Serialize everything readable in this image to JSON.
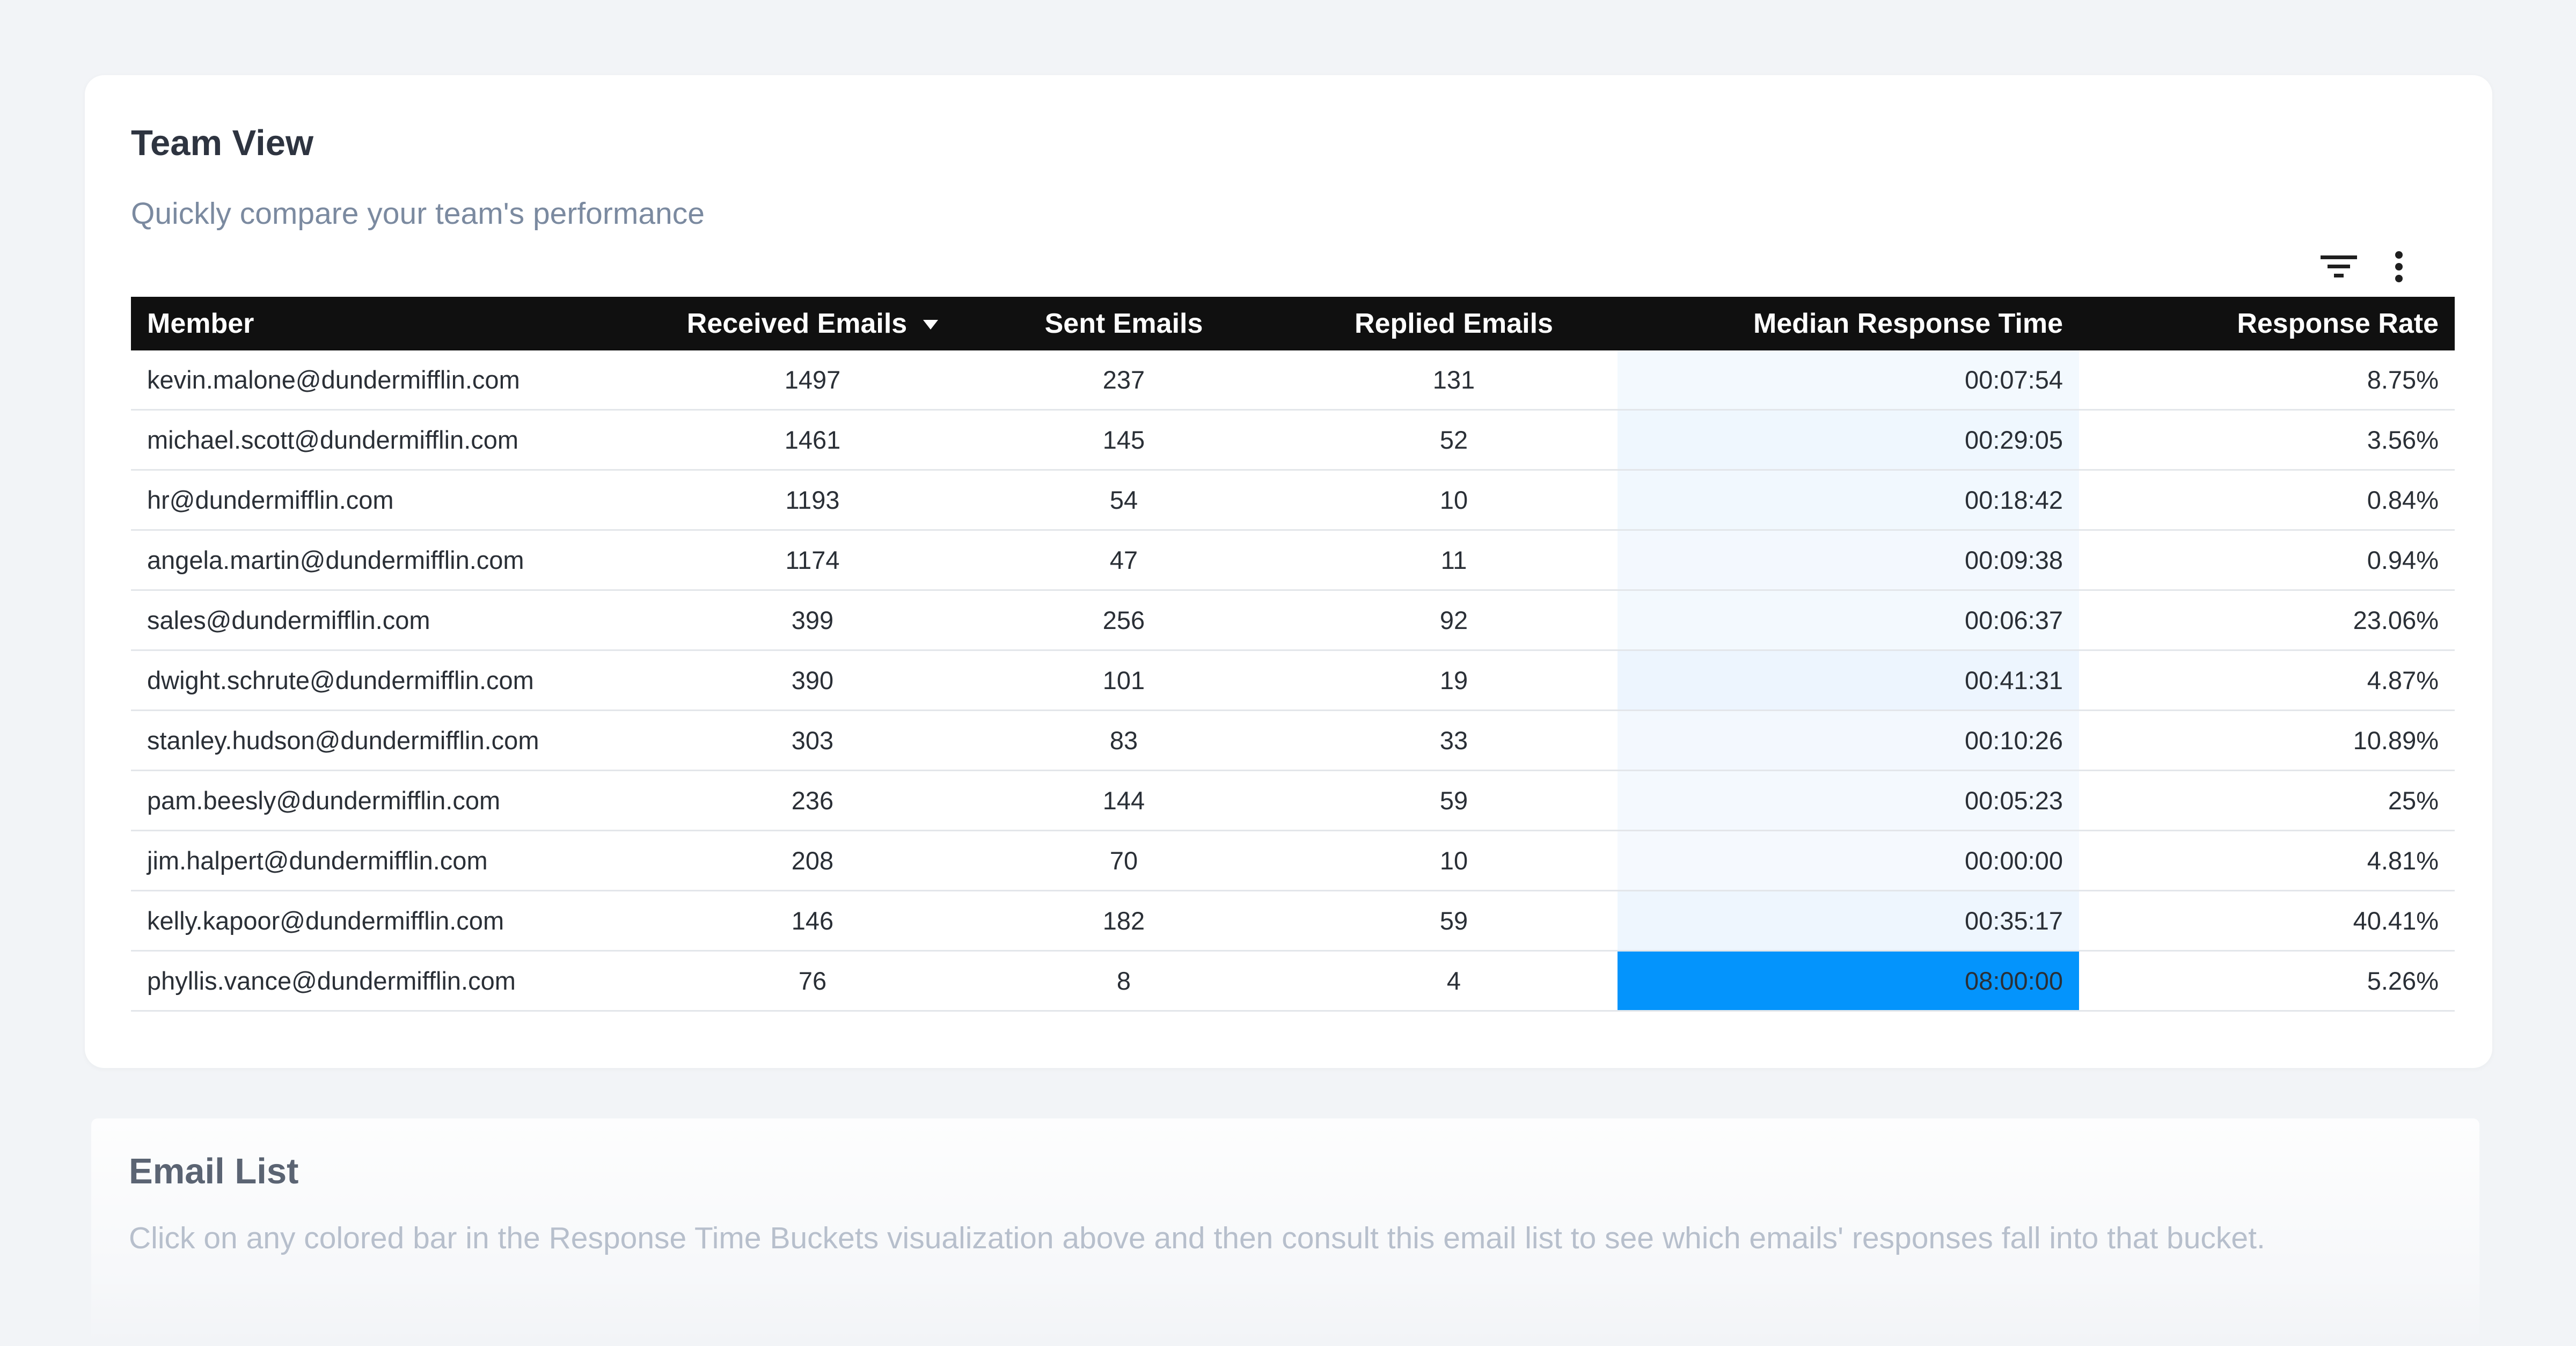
{
  "team_view": {
    "title": "Team View",
    "subtitle": "Quickly compare your team's performance",
    "toolbar": {
      "filter_icon": "filter-icon",
      "menu_icon": "more-vert-icon"
    },
    "columns": {
      "member": "Member",
      "received": "Received Emails",
      "sent": "Sent Emails",
      "replied": "Replied Emails",
      "median_response_time": "Median Response Time",
      "response_rate": "Response Rate"
    },
    "sort": {
      "column": "received",
      "direction": "descending"
    },
    "heat_colors": {
      "low": "#ffffff",
      "high": "#0494fc"
    },
    "rows": [
      {
        "member": "kevin.malone@dundermifflin.com",
        "received": "1497",
        "sent": "237",
        "replied": "131",
        "median_response_time": "00:07:54",
        "response_rate": "8.75%"
      },
      {
        "member": "michael.scott@dundermifflin.com",
        "received": "1461",
        "sent": "145",
        "replied": "52",
        "median_response_time": "00:29:05",
        "response_rate": "3.56%"
      },
      {
        "member": "hr@dundermifflin.com",
        "received": "1193",
        "sent": "54",
        "replied": "10",
        "median_response_time": "00:18:42",
        "response_rate": "0.84%"
      },
      {
        "member": "angela.martin@dundermifflin.com",
        "received": "1174",
        "sent": "47",
        "replied": "11",
        "median_response_time": "00:09:38",
        "response_rate": "0.94%"
      },
      {
        "member": "sales@dundermifflin.com",
        "received": "399",
        "sent": "256",
        "replied": "92",
        "median_response_time": "00:06:37",
        "response_rate": "23.06%"
      },
      {
        "member": "dwight.schrute@dundermifflin.com",
        "received": "390",
        "sent": "101",
        "replied": "19",
        "median_response_time": "00:41:31",
        "response_rate": "4.87%"
      },
      {
        "member": "stanley.hudson@dundermifflin.com",
        "received": "303",
        "sent": "83",
        "replied": "33",
        "median_response_time": "00:10:26",
        "response_rate": "10.89%"
      },
      {
        "member": "pam.beesly@dundermifflin.com",
        "received": "236",
        "sent": "144",
        "replied": "59",
        "median_response_time": "00:05:23",
        "response_rate": "25%"
      },
      {
        "member": "jim.halpert@dundermifflin.com",
        "received": "208",
        "sent": "70",
        "replied": "10",
        "median_response_time": "00:00:00",
        "response_rate": "4.81%"
      },
      {
        "member": "kelly.kapoor@dundermifflin.com",
        "received": "146",
        "sent": "182",
        "replied": "59",
        "median_response_time": "00:35:17",
        "response_rate": "40.41%"
      },
      {
        "member": "phyllis.vance@dundermifflin.com",
        "received": "76",
        "sent": "8",
        "replied": "4",
        "median_response_time": "08:00:00",
        "response_rate": "5.26%"
      }
    ]
  },
  "email_list": {
    "title": "Email List",
    "description": "Click on any colored bar in the Response Time Buckets visualization above and then consult this email list to see which emails' responses fall into that bucket."
  }
}
